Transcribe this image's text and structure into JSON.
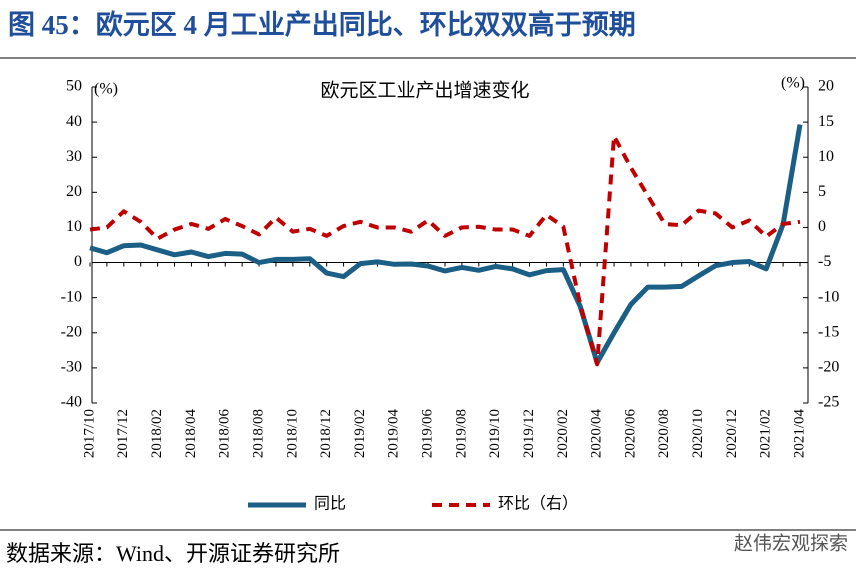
{
  "header": {
    "title": "图 45：欧元区 4 月工业产出同比、环比双双高于预期"
  },
  "chart_data": {
    "type": "line",
    "title": "欧元区工业产出增速变化",
    "y_unit": "(%)",
    "y2_unit": "(%)",
    "categories": [
      "2017/10",
      null,
      "2017/12",
      null,
      "2018/02",
      null,
      "2018/04",
      null,
      "2018/06",
      null,
      "2018/08",
      null,
      "2018/10",
      null,
      "2018/12",
      null,
      "2019/02",
      null,
      "2019/04",
      null,
      "2019/06",
      null,
      "2019/08",
      null,
      "2019/10",
      null,
      "2019/12",
      null,
      "2020/02",
      null,
      "2020/04",
      null,
      "2020/06",
      null,
      "2020/08",
      null,
      "2020/10",
      null,
      "2020/12",
      null,
      "2021/02",
      null,
      "2021/04"
    ],
    "series": [
      {
        "name": "同比",
        "color": "#1b5e86",
        "dash": false,
        "values": [
          4.2,
          2.8,
          4.8,
          5.0,
          3.6,
          2.2,
          3.0,
          1.7,
          2.6,
          2.4,
          0,
          0.9,
          0.9,
          1.1,
          -3.0,
          -4.0,
          -0.3,
          0.2,
          -0.5,
          -0.4,
          -1.0,
          -2.4,
          -1.4,
          -2.2,
          -1.1,
          -1.8,
          -3.5,
          -2.3,
          -2.0,
          -12.5,
          -28.5,
          -20.0,
          -11.9,
          -7.0,
          -7.0,
          -6.8,
          -3.8,
          -0.9,
          0,
          0.3,
          -1.8,
          10.9,
          39.3
        ]
      },
      {
        "name": "环比（右）",
        "color": "#c00000",
        "dash": true,
        "axis": "y2",
        "values": [
          -0.3,
          0,
          2.3,
          0.8,
          -1.6,
          -0.3,
          0.5,
          -0.2,
          1.2,
          0.2,
          -1.0,
          1.4,
          -0.6,
          -0.2,
          -1.2,
          0.2,
          0.8,
          0,
          0,
          -0.6,
          1.0,
          -1.2,
          0,
          0.1,
          -0.3,
          -0.3,
          -1.2,
          1.8,
          0.1,
          -11.0,
          -19.5,
          13.0,
          8.5,
          4.5,
          0.5,
          0.3,
          2.4,
          2.0,
          0,
          1.0,
          -1.3,
          0.5,
          0.8
        ]
      }
    ],
    "ylim": [
      -40,
      50
    ],
    "yticks": [
      -40,
      -30,
      -20,
      -10,
      0,
      10,
      20,
      30,
      40,
      50
    ],
    "y2lim": [
      -25,
      20
    ],
    "y2ticks": [
      -25,
      -20,
      -15,
      -10,
      -5,
      0,
      5,
      10,
      15,
      20
    ],
    "grid": false,
    "legend": "bottom"
  },
  "footer": {
    "source": "数据来源：Wind、开源证券研究所",
    "watermark": "赵伟宏观探索"
  }
}
